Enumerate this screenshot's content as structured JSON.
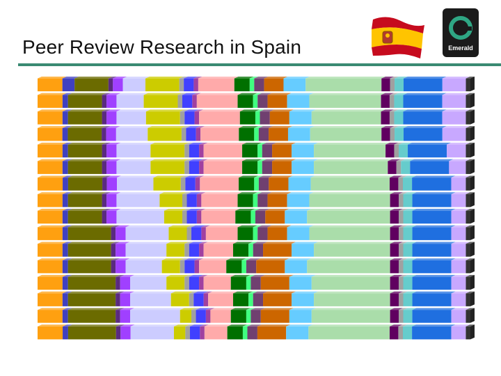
{
  "header": {
    "title": "Peer Review Research in Spain",
    "logo_label": "Emerald"
  },
  "flag": {
    "name": "spain-flag",
    "colors": {
      "red": "#c60b1e",
      "yellow": "#ffc400"
    }
  },
  "theme": {
    "rule_color": "#3a8a72",
    "logo_bg": "#1b1b1b",
    "logo_ring": "#2fa784"
  },
  "chart_data": {
    "type": "bar",
    "orientation": "horizontal",
    "stacked": true,
    "normalized": true,
    "bar_count": 16,
    "segment_colors": [
      "#ffa010",
      "#4040c0",
      "#6b6b00",
      "#5a2a80",
      "#a040ff",
      "#ccccff",
      "#cccc00",
      "#a0a0a0",
      "#4040ff",
      "#a040a0",
      "#ffaaaa",
      "#007000",
      "#40ff80",
      "#704070",
      "#cc6600",
      "#66ccff",
      "#aaddaa",
      "#600060",
      "#a0a0a0",
      "#66cccc",
      "#1f6fe0",
      "#c8a8ff",
      "#333333"
    ],
    "rows": [
      [
        0.055,
        0.027,
        0.075,
        0.01,
        0.022,
        0.05,
        0.075,
        0.01,
        0.022,
        0.01,
        0.08,
        0.034,
        0.01,
        0.022,
        0.043,
        0.049,
        0.168,
        0.019,
        0.01,
        0.02,
        0.086,
        0.052,
        0.01
      ],
      [
        0.055,
        0.012,
        0.075,
        0.01,
        0.022,
        0.06,
        0.075,
        0.01,
        0.022,
        0.01,
        0.09,
        0.034,
        0.01,
        0.022,
        0.043,
        0.049,
        0.158,
        0.019,
        0.01,
        0.02,
        0.086,
        0.052,
        0.01
      ],
      [
        0.055,
        0.012,
        0.075,
        0.01,
        0.022,
        0.065,
        0.075,
        0.01,
        0.022,
        0.01,
        0.09,
        0.034,
        0.01,
        0.022,
        0.043,
        0.049,
        0.153,
        0.019,
        0.01,
        0.02,
        0.086,
        0.052,
        0.01
      ],
      [
        0.055,
        0.012,
        0.075,
        0.01,
        0.022,
        0.07,
        0.075,
        0.01,
        0.022,
        0.01,
        0.085,
        0.034,
        0.01,
        0.022,
        0.043,
        0.049,
        0.158,
        0.019,
        0.01,
        0.02,
        0.086,
        0.052,
        0.01
      ],
      [
        0.055,
        0.012,
        0.075,
        0.01,
        0.022,
        0.075,
        0.075,
        0.01,
        0.022,
        0.01,
        0.085,
        0.034,
        0.01,
        0.022,
        0.043,
        0.049,
        0.158,
        0.019,
        0.01,
        0.02,
        0.086,
        0.042,
        0.01
      ],
      [
        0.055,
        0.012,
        0.075,
        0.01,
        0.022,
        0.075,
        0.075,
        0.01,
        0.022,
        0.01,
        0.085,
        0.034,
        0.01,
        0.022,
        0.043,
        0.049,
        0.163,
        0.019,
        0.01,
        0.02,
        0.086,
        0.037,
        0.01
      ],
      [
        0.055,
        0.012,
        0.075,
        0.01,
        0.022,
        0.08,
        0.06,
        0.01,
        0.022,
        0.01,
        0.085,
        0.034,
        0.01,
        0.022,
        0.043,
        0.049,
        0.173,
        0.019,
        0.01,
        0.02,
        0.086,
        0.032,
        0.01
      ],
      [
        0.055,
        0.012,
        0.075,
        0.01,
        0.022,
        0.095,
        0.05,
        0.01,
        0.022,
        0.01,
        0.08,
        0.034,
        0.01,
        0.022,
        0.043,
        0.049,
        0.178,
        0.019,
        0.01,
        0.02,
        0.086,
        0.032,
        0.01
      ],
      [
        0.055,
        0.012,
        0.075,
        0.01,
        0.022,
        0.105,
        0.04,
        0.01,
        0.022,
        0.01,
        0.075,
        0.034,
        0.01,
        0.022,
        0.043,
        0.049,
        0.183,
        0.019,
        0.01,
        0.02,
        0.086,
        0.032,
        0.01
      ],
      [
        0.055,
        0.012,
        0.095,
        0.01,
        0.022,
        0.095,
        0.04,
        0.01,
        0.022,
        0.01,
        0.07,
        0.034,
        0.01,
        0.022,
        0.043,
        0.049,
        0.178,
        0.019,
        0.01,
        0.02,
        0.086,
        0.032,
        0.01
      ],
      [
        0.055,
        0.012,
        0.095,
        0.01,
        0.022,
        0.09,
        0.04,
        0.01,
        0.022,
        0.01,
        0.065,
        0.034,
        0.01,
        0.022,
        0.063,
        0.049,
        0.168,
        0.019,
        0.01,
        0.02,
        0.086,
        0.032,
        0.01
      ],
      [
        0.055,
        0.012,
        0.095,
        0.01,
        0.022,
        0.08,
        0.04,
        0.01,
        0.022,
        0.01,
        0.06,
        0.034,
        0.01,
        0.022,
        0.063,
        0.049,
        0.183,
        0.019,
        0.01,
        0.02,
        0.086,
        0.032,
        0.01
      ],
      [
        0.055,
        0.012,
        0.105,
        0.01,
        0.022,
        0.08,
        0.04,
        0.01,
        0.022,
        0.01,
        0.06,
        0.034,
        0.01,
        0.022,
        0.063,
        0.049,
        0.173,
        0.019,
        0.01,
        0.02,
        0.086,
        0.032,
        0.01
      ],
      [
        0.055,
        0.012,
        0.105,
        0.01,
        0.022,
        0.09,
        0.04,
        0.01,
        0.022,
        0.01,
        0.055,
        0.034,
        0.01,
        0.022,
        0.063,
        0.049,
        0.168,
        0.019,
        0.01,
        0.02,
        0.086,
        0.032,
        0.01
      ],
      [
        0.055,
        0.012,
        0.105,
        0.01,
        0.022,
        0.11,
        0.025,
        0.01,
        0.022,
        0.01,
        0.045,
        0.034,
        0.01,
        0.022,
        0.063,
        0.049,
        0.173,
        0.019,
        0.01,
        0.02,
        0.086,
        0.032,
        0.01
      ],
      [
        0.055,
        0.012,
        0.105,
        0.01,
        0.022,
        0.095,
        0.025,
        0.01,
        0.022,
        0.01,
        0.05,
        0.034,
        0.01,
        0.022,
        0.063,
        0.049,
        0.178,
        0.019,
        0.01,
        0.02,
        0.086,
        0.032,
        0.01
      ]
    ],
    "title": "",
    "xlabel": "",
    "ylabel": "",
    "xlim": [
      0,
      1
    ],
    "grid": false,
    "legend": "none"
  }
}
